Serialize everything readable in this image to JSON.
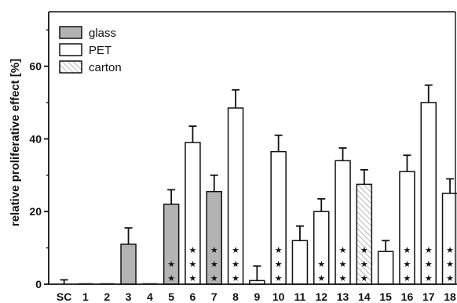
{
  "chart_data": {
    "type": "bar",
    "title": "",
    "xlabel": "",
    "ylabel": "relative proliferative effect [%]",
    "ylim": [
      0,
      75
    ],
    "yticks": [
      0,
      20,
      40,
      60
    ],
    "categories": [
      "SC",
      "1",
      "2",
      "3",
      "4",
      "5",
      "6",
      "7",
      "8",
      "9",
      "10",
      "11",
      "12",
      "13",
      "14",
      "15",
      "16",
      "17",
      "18"
    ],
    "values": [
      0,
      0,
      0,
      11,
      0,
      22,
      39,
      25.5,
      48.5,
      1,
      36.5,
      12,
      20,
      34,
      27.5,
      9,
      31,
      50,
      25
    ],
    "errors": [
      1.2,
      0,
      0,
      4.5,
      0,
      4,
      4.5,
      4.5,
      5,
      4,
      4.5,
      4,
      3.5,
      3.5,
      4,
      3,
      4.5,
      4.8,
      4
    ],
    "material": [
      "none",
      "PET",
      "PET",
      "glass",
      "glass",
      "glass",
      "PET",
      "glass",
      "PET",
      "PET",
      "PET",
      "PET",
      "PET",
      "PET",
      "carton",
      "PET",
      "PET",
      "PET",
      "PET"
    ],
    "stars": [
      0,
      0,
      0,
      0,
      0,
      2,
      3,
      3,
      3,
      0,
      3,
      0,
      2,
      3,
      3,
      0,
      3,
      3,
      3
    ],
    "star_symbol": "★",
    "legend": {
      "position": "top-left",
      "entries": [
        {
          "name": "glass",
          "fill": "#b3b3b3",
          "pattern": "solid"
        },
        {
          "name": "PET",
          "fill": "#ffffff",
          "pattern": "solid"
        },
        {
          "name": "carton",
          "fill": "#ffffff",
          "pattern": "hatch"
        }
      ]
    },
    "colors": {
      "glass": "#b3b3b3",
      "PET": "#ffffff",
      "hatch": "#9a9a9a",
      "axis": "#111111"
    },
    "grid": false
  }
}
